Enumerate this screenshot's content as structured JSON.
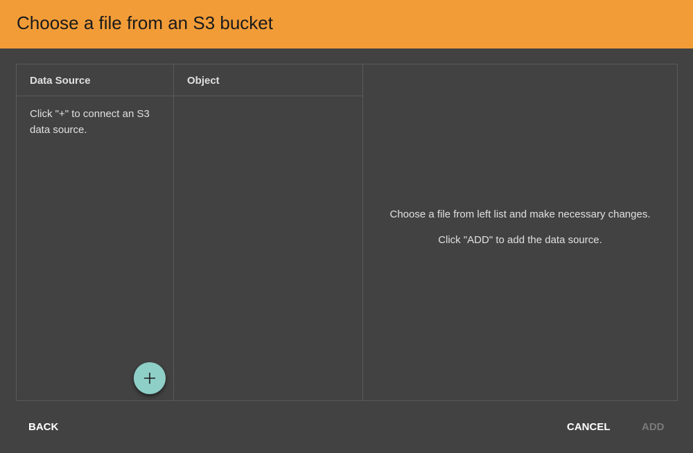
{
  "dialog": {
    "title": "Choose a file from an S3 bucket"
  },
  "columns": {
    "data_source": {
      "header": "Data Source",
      "empty_hint": "Click \"+\" to connect an S3 data source."
    },
    "object": {
      "header": "Object"
    }
  },
  "preview": {
    "line1": "Choose a file from left list and make necessary changes.",
    "line2": "Click \"ADD\" to add the data source."
  },
  "fab": {
    "icon": "plus-icon"
  },
  "footer": {
    "back": "BACK",
    "cancel": "CANCEL",
    "add": "ADD",
    "add_disabled": true
  },
  "colors": {
    "header": "#f29c38",
    "background": "#424242",
    "fab": "#8ecfc8"
  }
}
